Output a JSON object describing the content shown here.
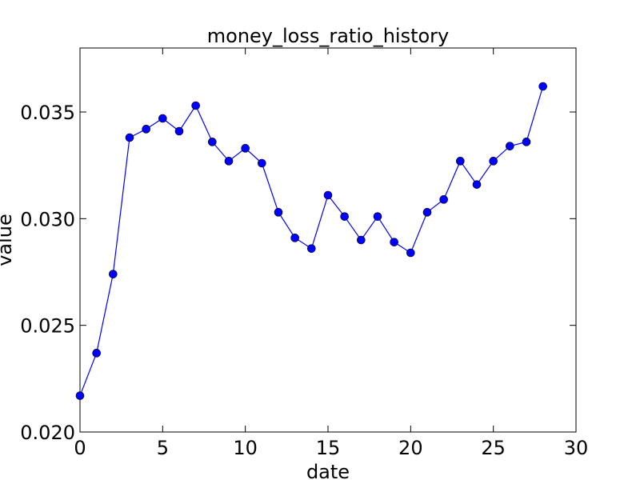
{
  "chart_data": {
    "type": "line",
    "title": "money_loss_ratio_history",
    "xlabel": "date",
    "ylabel": "value",
    "xlim": [
      0,
      30
    ],
    "ylim": [
      0.02,
      0.038
    ],
    "xticks": [
      0,
      5,
      10,
      15,
      20,
      25,
      30
    ],
    "xtick_labels": [
      "0",
      "5",
      "10",
      "15",
      "20",
      "25",
      "30"
    ],
    "yticks": [
      0.02,
      0.025,
      0.03,
      0.035
    ],
    "ytick_labels": [
      "0.020",
      "0.025",
      "0.030",
      "0.035"
    ],
    "grid": false,
    "legend": "none",
    "line_color": "#0000ff",
    "marker_color": "#0000ff",
    "marker": "circle",
    "x": [
      0,
      1,
      2,
      3,
      4,
      5,
      6,
      7,
      8,
      9,
      10,
      11,
      12,
      13,
      14,
      15,
      16,
      17,
      18,
      19,
      20,
      21,
      22,
      23,
      24,
      25,
      26,
      27,
      28
    ],
    "y": [
      0.0217,
      0.0237,
      0.0274,
      0.0338,
      0.0342,
      0.0347,
      0.0341,
      0.0353,
      0.0336,
      0.0327,
      0.0333,
      0.0326,
      0.0303,
      0.0291,
      0.0286,
      0.0311,
      0.0301,
      0.029,
      0.0301,
      0.0289,
      0.0284,
      0.0303,
      0.0309,
      0.0327,
      0.0316,
      0.0327,
      0.0334,
      0.0336,
      0.0362
    ]
  }
}
